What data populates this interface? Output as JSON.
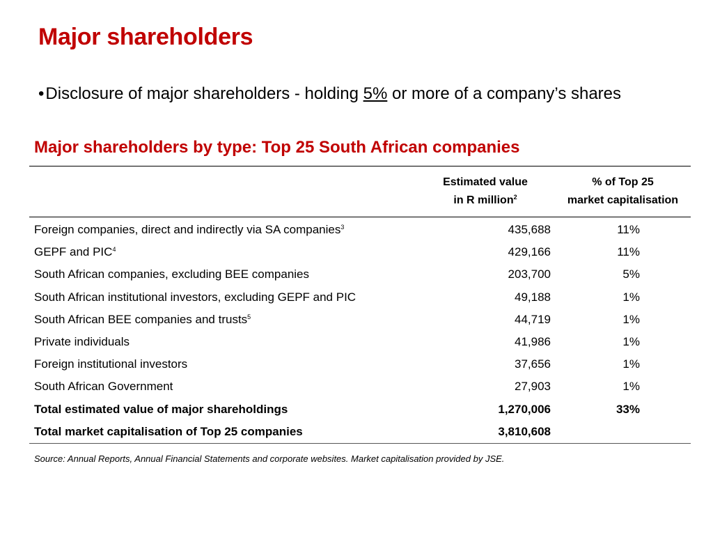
{
  "slide": {
    "title": "Major shareholders",
    "bullet": {
      "prefix": "Disclosure of major shareholders - holding ",
      "underlined": "5%",
      "suffix": " or more of a company’s shares"
    }
  },
  "table": {
    "title": "Major shareholders by type: Top 25 South African companies",
    "headers": {
      "value_line1": "Estimated value",
      "value_line2": "in R million",
      "value_note": "2",
      "pct_line1": "% of Top 25",
      "pct_line2": "market capitalisation"
    },
    "rows": [
      {
        "label": "Foreign companies, direct and indirectly via SA companies",
        "note": "3",
        "value": "435,688",
        "pct": "11%"
      },
      {
        "label": "GEPF and PIC",
        "note": "4",
        "value": "429,166",
        "pct": "11%"
      },
      {
        "label": "South African companies, excluding BEE companies",
        "note": "",
        "value": "203,700",
        "pct": "5%"
      },
      {
        "label": "South African institutional investors, excluding GEPF and PIC",
        "note": "",
        "value": "49,188",
        "pct": "1%"
      },
      {
        "label": "South African BEE companies and trusts",
        "note": "5",
        "value": "44,719",
        "pct": "1%"
      },
      {
        "label": "Private individuals",
        "note": "",
        "value": "41,986",
        "pct": "1%"
      },
      {
        "label": "Foreign institutional investors",
        "note": "",
        "value": "37,656",
        "pct": "1%"
      },
      {
        "label": "South African Government",
        "note": "",
        "value": "27,903",
        "pct": "1%"
      }
    ],
    "totals": [
      {
        "label": "Total estimated value of major shareholdings",
        "value": "1,270,006",
        "pct": "33%"
      },
      {
        "label": "Total market capitalisation of Top 25 companies",
        "value": "3,810,608",
        "pct": ""
      }
    ]
  },
  "source": "Source:  Annual Reports, Annual Financial Statements and corporate websites.  Market capitalisation provided by JSE."
}
